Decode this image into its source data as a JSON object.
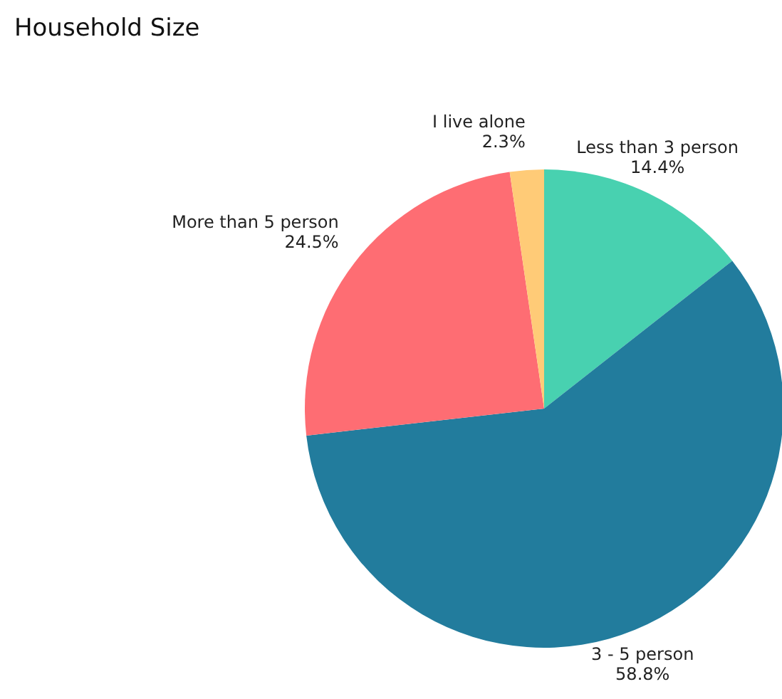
{
  "chart_data": {
    "type": "pie",
    "title": "Household Size",
    "categories": [
      "Less than 3 person",
      "3 - 5 person",
      "More than 5 person",
      "I live alone"
    ],
    "values": [
      14.4,
      58.8,
      24.5,
      2.3
    ],
    "colors": [
      "#48d1b0",
      "#227c9d",
      "#fe6d73",
      "#ffcb77"
    ],
    "value_labels": [
      "14.4%",
      "58.8%",
      "24.5%",
      "2.3%"
    ],
    "legend": false
  }
}
